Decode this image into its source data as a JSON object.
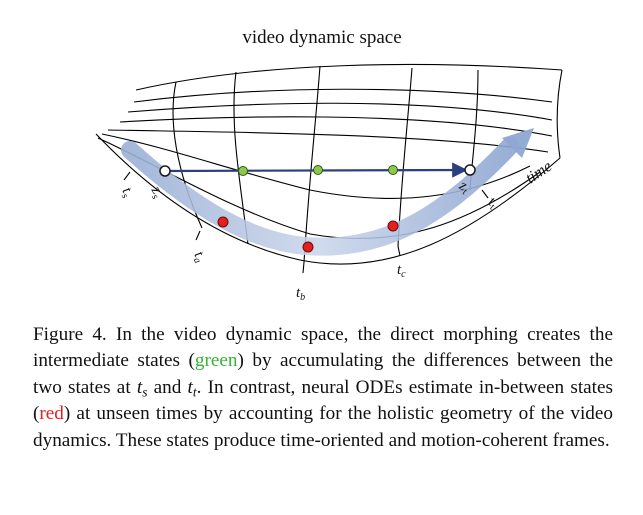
{
  "figure": {
    "title": "video dynamic space",
    "axis_label": "time",
    "labels": {
      "ts": "t",
      "ts_sub": "s",
      "zs": "z",
      "zs_sub": "s",
      "zt": "z",
      "zt_sub": "t",
      "tt": "t",
      "tt_sub": "t",
      "ta": "t",
      "ta_sub": "a",
      "tb": "t",
      "tb_sub": "b",
      "tc": "t",
      "tc_sub": "c"
    },
    "colors": {
      "green_state": "#8cc84b",
      "red_state": "#e61e1e",
      "path_arrow": "#2b3f7e",
      "time_arrow": "#9fb4d8",
      "grid_line": "#000000"
    }
  },
  "caption": {
    "prefix": "Figure 4. In the video dynamic space, the direct morphing creates the intermediate states (",
    "green_word": "green",
    "part2": ") by accumulating the differences between the two states at ",
    "ts_var": "t",
    "ts_sub": "s",
    "and_word": " and ",
    "tt_var": "t",
    "tt_sub": "t",
    "part3": ". In contrast, neural ODEs estimate in-between states (",
    "red_word": "red",
    "suffix": ") at unseen times by accounting for the holistic geometry of the video dynamics. These states produce time-oriented and motion-coherent frames."
  }
}
